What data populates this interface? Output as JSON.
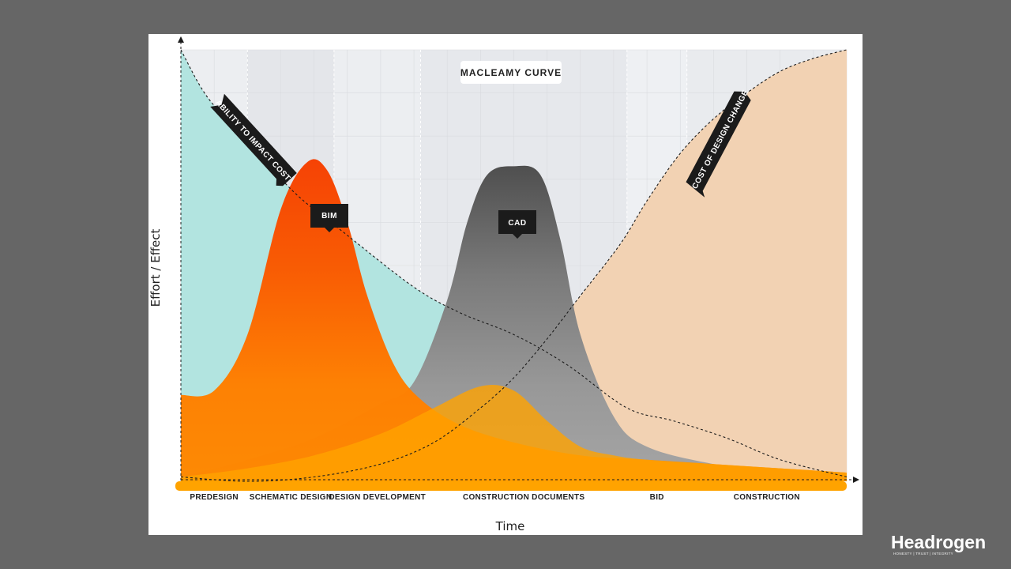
{
  "chart_data": {
    "type": "area",
    "title": "MACLEAMY CURVE",
    "xlabel": "Time",
    "ylabel": "Effort / Effect",
    "phases": [
      {
        "label": "PREDESIGN",
        "start": 0,
        "end": 10
      },
      {
        "label": "SCHEMATIC DESIGN",
        "start": 10,
        "end": 23
      },
      {
        "label": "DESIGN DEVELOPMENT",
        "start": 23,
        "end": 36
      },
      {
        "label": "CONSTRUCTION DOCUMENTS",
        "start": 36,
        "end": 67
      },
      {
        "label": "BID",
        "start": 67,
        "end": 76
      },
      {
        "label": "CONSTRUCTION",
        "start": 76,
        "end": 100
      }
    ],
    "series": [
      {
        "name": "ABILITY TO IMPACT COST",
        "x": [
          0,
          4,
          10,
          17,
          25,
          35,
          42,
          50,
          58,
          67,
          74,
          82,
          90,
          100
        ],
        "y": [
          100,
          89,
          79,
          67,
          57,
          45,
          39,
          34,
          27,
          17,
          14,
          10,
          5,
          1
        ]
      },
      {
        "name": "COST OF DESIGN CHANGE",
        "x": [
          0,
          10,
          20,
          30,
          38,
          45,
          50,
          55,
          60,
          66,
          70,
          75,
          80,
          85,
          90,
          95,
          100
        ],
        "y": [
          1,
          0,
          1,
          4,
          9,
          17,
          24,
          33,
          43,
          55,
          65,
          76,
          84,
          90,
          95,
          98,
          100
        ]
      },
      {
        "name": "BIM",
        "x": [
          0,
          5,
          10,
          15,
          19,
          22,
          25,
          28,
          32,
          36,
          42,
          50,
          60,
          70,
          80,
          90,
          100
        ],
        "y": [
          20,
          21,
          34,
          63,
          74,
          72,
          60,
          43,
          27,
          19,
          13,
          9,
          6,
          5,
          4,
          3,
          2
        ]
      },
      {
        "name": "CAD",
        "x": [
          0,
          10,
          20,
          30,
          35,
          40,
          43,
          46,
          50,
          54,
          57,
          60,
          65,
          70,
          80,
          90,
          100
        ],
        "y": [
          1,
          5,
          10,
          18,
          23,
          42,
          60,
          71,
          73,
          71,
          56,
          34,
          15,
          8,
          4,
          2,
          1
        ]
      }
    ],
    "annotations": [
      "BIM",
      "CAD",
      "ABILITY TO IMPACT COST",
      "COST OF DESIGN CHANGE"
    ],
    "ylim": [
      0,
      100
    ],
    "xlim": [
      0,
      100
    ],
    "grid": true,
    "colors": {
      "ability": "#b2e4e0",
      "cost_change": "#f2d2b3",
      "bim": "#fe8200",
      "bim_peak": "#f63f00",
      "cad": "#8a8a8a",
      "cad_peak": "#4f4f4f",
      "construction_area": "#ffa300",
      "tag": "#1b1b1b"
    }
  },
  "logo": {
    "word": "Headrogen",
    "tagline": "HONESTY | TRUST | INTEGRITY"
  }
}
